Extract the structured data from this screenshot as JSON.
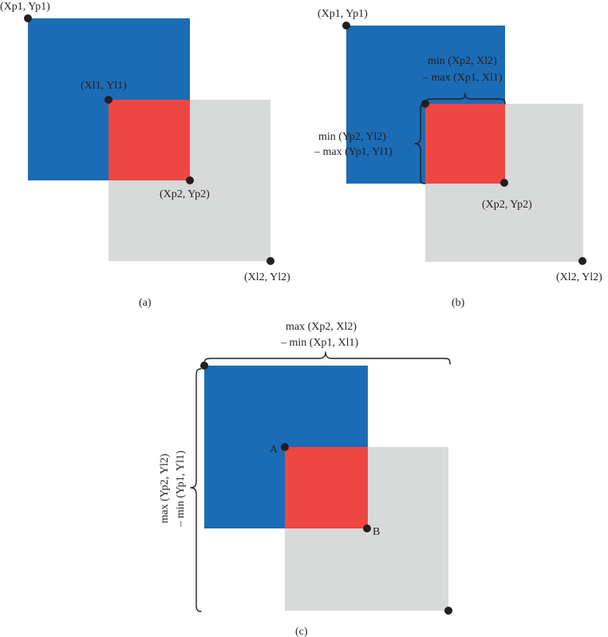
{
  "colors": {
    "predicted_box": "#1b6cb5",
    "label_box": "#d8d9d9",
    "intersection": "#ee4743",
    "point": "#231f20"
  },
  "panel_a": {
    "caption": "(a)",
    "p1_label": "(Xp1, Yp1)",
    "l1_label": "(Xl1, Yl1)",
    "p2_label": "(Xp2, Yp2)",
    "l2_label": "(Xl2, Yl2)"
  },
  "panel_b": {
    "caption": "(b)",
    "p1_label": "(Xp1, Yp1)",
    "p2_label": "(Xp2, Yp2)",
    "l2_label": "(Xl2, Yl2)",
    "width_formula_line1": "min (Xp2, Xl2)",
    "width_formula_line2": "– max (Xp1, Xl1)",
    "height_formula_line1": "min (Yp2, Yl2)",
    "height_formula_line2": "– max (Yp1, Yl1)"
  },
  "panel_c": {
    "caption": "(c)",
    "point_a_label": "A",
    "point_b_label": "B",
    "width_formula_line1": "max (Xp2, Xl2)",
    "width_formula_line2": "– min (Xp1, Xl1)",
    "height_formula_line1": "max (Yp2, Yl2)",
    "height_formula_line2": "– min (Yp1, Yl1)"
  }
}
